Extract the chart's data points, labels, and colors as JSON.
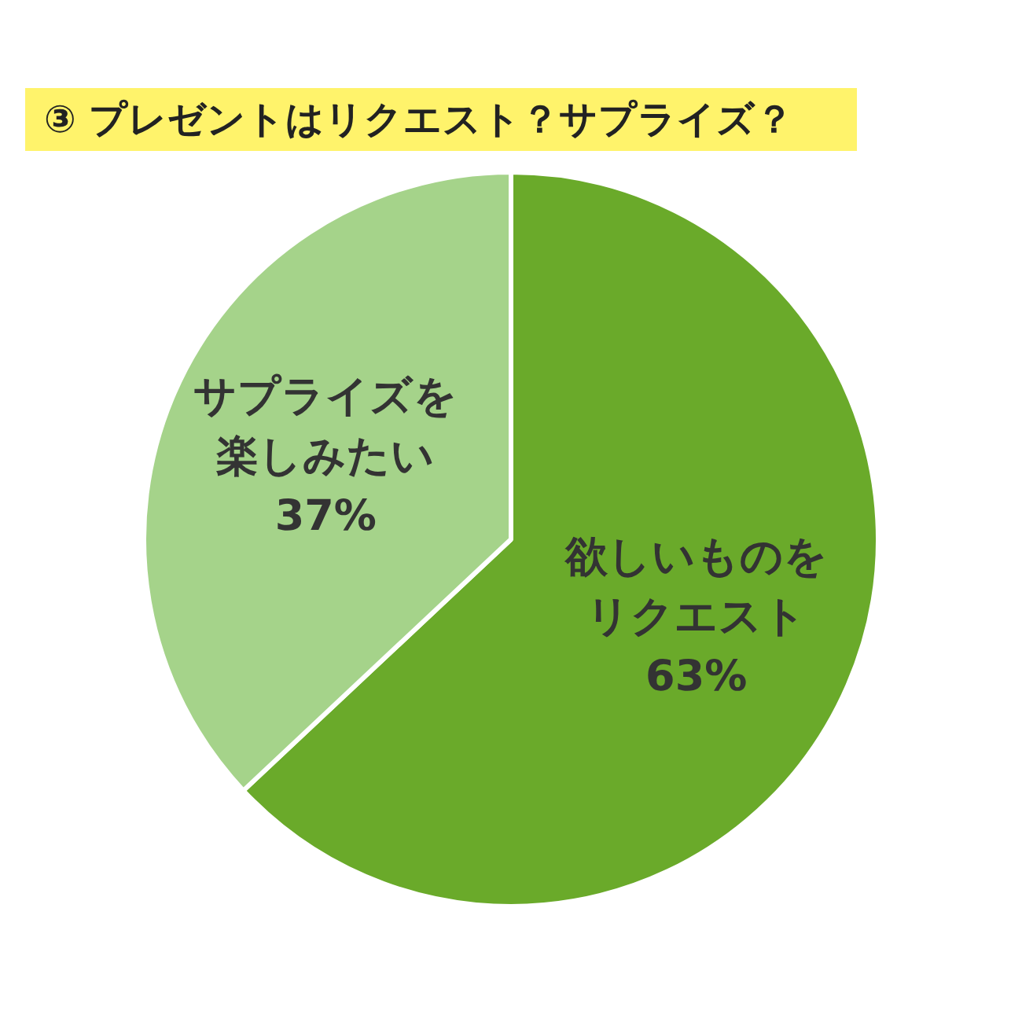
{
  "chart_data": {
    "type": "pie",
    "title": "③ プレゼントはリクエスト？サプライズ？",
    "categories": [
      "欲しいものをリクエスト",
      "サプライズを楽しみたい"
    ],
    "values": [
      63,
      37
    ],
    "colors": [
      "#6aaa2a",
      "#a5d38a"
    ],
    "value_labels": [
      "63%",
      "37%"
    ],
    "legend": false
  }
}
